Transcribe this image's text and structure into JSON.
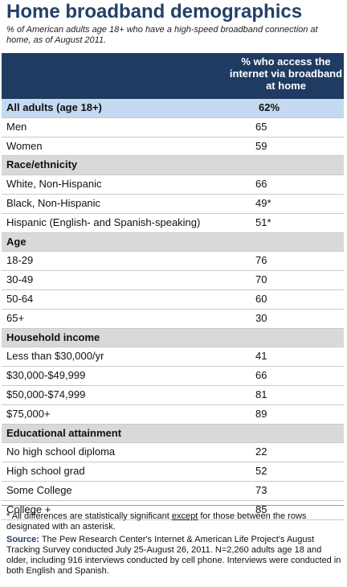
{
  "title": "Home broadband demographics",
  "subtitle": "% of American adults age 18+ who have a high-speed broadband connection at home, as of August 2011.",
  "header": {
    "column": "% who access the internet via broadband at home"
  },
  "rows": [
    {
      "type": "highlight",
      "label": "All adults (age 18+)",
      "value": "62%"
    },
    {
      "type": "data",
      "label": "Men",
      "value": "65"
    },
    {
      "type": "data",
      "label": "Women",
      "value": "59"
    },
    {
      "type": "section",
      "label": "Race/ethnicity",
      "value": ""
    },
    {
      "type": "data",
      "label": "White, Non-Hispanic",
      "value": "66"
    },
    {
      "type": "data",
      "label": "Black, Non-Hispanic",
      "value": "49*"
    },
    {
      "type": "data",
      "label": "Hispanic (English- and Spanish-speaking)",
      "value": "51*"
    },
    {
      "type": "section",
      "label": "Age",
      "value": ""
    },
    {
      "type": "data",
      "label": "18-29",
      "value": "76"
    },
    {
      "type": "data",
      "label": "30-49",
      "value": "70"
    },
    {
      "type": "data",
      "label": "50-64",
      "value": "60"
    },
    {
      "type": "data",
      "label": "65+",
      "value": "30"
    },
    {
      "type": "section",
      "label": "Household income",
      "value": ""
    },
    {
      "type": "data",
      "label": "Less than $30,000/yr",
      "value": "41"
    },
    {
      "type": "data",
      "label": "$30,000-$49,999",
      "value": "66"
    },
    {
      "type": "data",
      "label": "$50,000-$74,999",
      "value": "81"
    },
    {
      "type": "data",
      "label": "$75,000+",
      "value": "89"
    },
    {
      "type": "section",
      "label": "Educational attainment",
      "value": ""
    },
    {
      "type": "data",
      "label": "No high school diploma",
      "value": "22"
    },
    {
      "type": "data",
      "label": "High school grad",
      "value": "52"
    },
    {
      "type": "data",
      "label": "Some College",
      "value": "73"
    },
    {
      "type": "data",
      "label": "College +",
      "value": "85"
    }
  ],
  "footnote": {
    "before": "* All differences are statistically significant ",
    "underlined": "except",
    "after": " for those between the rows designated with an asterisk."
  },
  "source": {
    "label": "Source:",
    "text": " The Pew Research Center's Internet & American Life Project's August Tracking Survey conducted July 25-August 26, 2011. N=2,260 adults age 18 and older, including 916 interviews conducted by cell phone. Interviews were conducted in both English and Spanish."
  }
}
